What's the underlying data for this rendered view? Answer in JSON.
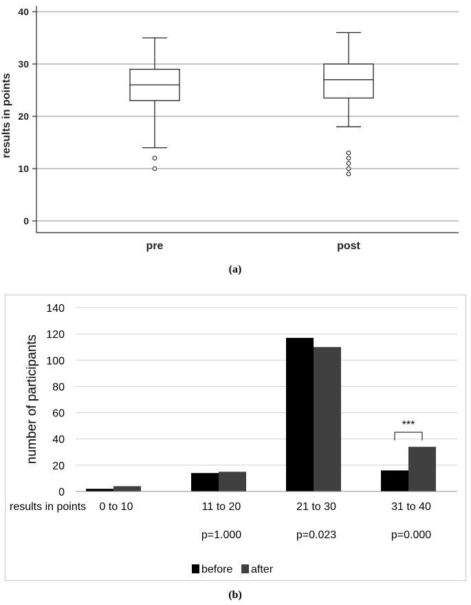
{
  "chart_data": [
    {
      "type": "boxplot",
      "panel_label": "(a)",
      "ylabel": "results in points",
      "xlabel": "",
      "ylim": [
        -4,
        41
      ],
      "yticks": [
        0,
        10,
        20,
        30,
        40
      ],
      "grid": true,
      "categories": [
        "pre",
        "post"
      ],
      "boxes": [
        {
          "name": "pre",
          "whisker_low": 14,
          "q1": 23,
          "median": 26,
          "q3": 29,
          "whisker_high": 35,
          "outliers": [
            10,
            12
          ]
        },
        {
          "name": "post",
          "whisker_low": 18,
          "q1": 23.5,
          "median": 27,
          "q3": 30,
          "whisker_high": 36,
          "outliers": [
            9,
            10,
            11,
            12,
            13
          ]
        }
      ]
    },
    {
      "type": "bar",
      "panel_label": "(b)",
      "ylabel": "number of participants",
      "xlabel": "results in points",
      "ylim": [
        0,
        140
      ],
      "yticks": [
        0,
        20,
        40,
        60,
        80,
        100,
        120,
        140
      ],
      "grid": true,
      "legend_position": "bottom-center",
      "categories": [
        "0 to 10",
        "11 to 20",
        "21 to 30",
        "31 to 40"
      ],
      "p_values": [
        "",
        "p=1.000",
        "p=0.023",
        "p=0.000"
      ],
      "series": [
        {
          "name": "before",
          "color": "#000000",
          "values": [
            2,
            14,
            117,
            16
          ]
        },
        {
          "name": "after",
          "color": "#404040",
          "values": [
            4,
            15,
            110,
            34
          ]
        }
      ],
      "annotations": [
        {
          "category": "31 to 40",
          "text": "***"
        }
      ]
    }
  ]
}
